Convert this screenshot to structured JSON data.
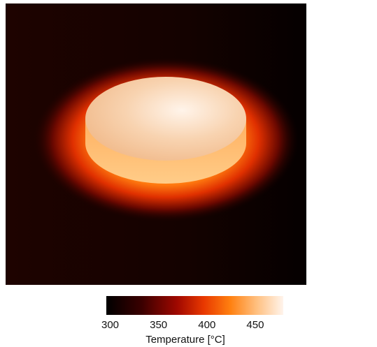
{
  "colorbar": {
    "label": "Temperature [°C]",
    "lim": [
      296,
      479
    ],
    "ticks": [
      300,
      350,
      400,
      450
    ]
  }
}
